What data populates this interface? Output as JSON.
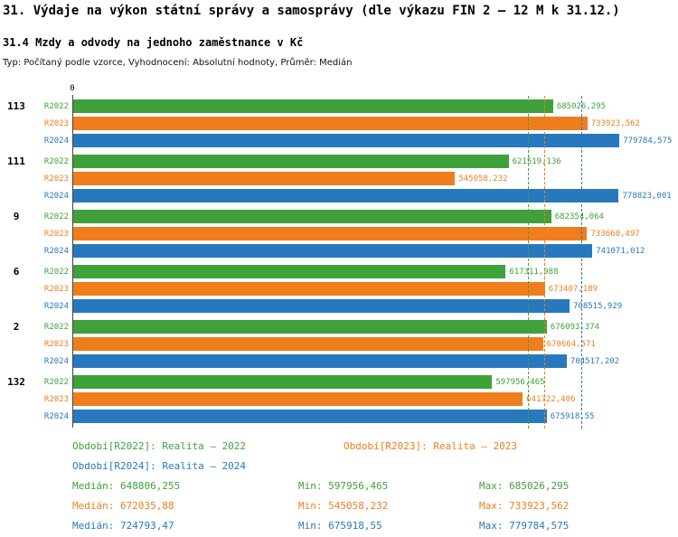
{
  "colors": {
    "R2022": "#3fa13a",
    "R2023": "#f07d1c",
    "R2024": "#2878be"
  },
  "chart_data": {
    "type": "bar",
    "orientation": "horizontal",
    "title": "31. Výdaje na výkon státní správy a samosprávy (dle výkazu FIN 2 – 12 M k 31.12.)",
    "subtitle": "31.4 Mzdy a odvody na jednoho zaměstnance v Kč",
    "meta": "Typ: Počítaný podle vzorce, Vyhodnocení: Absolutní hodnoty, Průměr: Medián",
    "axis_zero_label": "0",
    "value_axis_min": 0,
    "max_value": 779784.575,
    "max_bar_pct": 91,
    "categories": [
      "113",
      "111",
      "9",
      "6",
      "2",
      "132"
    ],
    "series_periods": [
      "R2022",
      "R2023",
      "R2024"
    ],
    "groups": [
      {
        "id": "113",
        "bars": [
          {
            "period": "R2022",
            "value": 685026.295,
            "label": "685026,295"
          },
          {
            "period": "R2023",
            "value": 733923.562,
            "label": "733923,562"
          },
          {
            "period": "R2024",
            "value": 779784.575,
            "label": "779784,575"
          }
        ]
      },
      {
        "id": "111",
        "bars": [
          {
            "period": "R2022",
            "value": 621519.136,
            "label": "621519,136"
          },
          {
            "period": "R2023",
            "value": 545058.232,
            "label": "545058,232"
          },
          {
            "period": "R2024",
            "value": 778823.001,
            "label": "778823,001"
          }
        ]
      },
      {
        "id": "9",
        "bars": [
          {
            "period": "R2022",
            "value": 682354.064,
            "label": "682354,064"
          },
          {
            "period": "R2023",
            "value": 733660.497,
            "label": "733660,497"
          },
          {
            "period": "R2024",
            "value": 741071.012,
            "label": "741071,012"
          }
        ]
      },
      {
        "id": "6",
        "bars": [
          {
            "period": "R2022",
            "value": 617311.988,
            "label": "617311,988"
          },
          {
            "period": "R2023",
            "value": 673407.189,
            "label": "673407,189"
          },
          {
            "period": "R2024",
            "value": 708515.929,
            "label": "708515,929"
          }
        ]
      },
      {
        "id": "2",
        "bars": [
          {
            "period": "R2022",
            "value": 676093.374,
            "label": "676093,374"
          },
          {
            "period": "R2023",
            "value": 670664.571,
            "label": "670664,571"
          },
          {
            "period": "R2024",
            "value": 704517.202,
            "label": "704517,202"
          }
        ]
      },
      {
        "id": "132",
        "bars": [
          {
            "period": "R2022",
            "value": 597956.465,
            "label": "597956,465"
          },
          {
            "period": "R2023",
            "value": 641722.406,
            "label": "641722,406"
          },
          {
            "period": "R2024",
            "value": 675918.55,
            "label": "675918,55"
          }
        ]
      }
    ],
    "medians": [
      {
        "period": "R2022",
        "value": 648806.255
      },
      {
        "period": "R2023",
        "value": 672035.88
      },
      {
        "period": "R2024",
        "value": 724793.47
      }
    ]
  },
  "legend": [
    {
      "period": "R2022",
      "label": "Období[R2022]: Realita – 2022"
    },
    {
      "period": "R2023",
      "label": "Období[R2023]: Realita – 2023"
    },
    {
      "period": "R2024",
      "label": "Období[R2024]: Realita – 2024"
    }
  ],
  "stats": [
    {
      "period": "R2022",
      "median": "Medián: 648806,255",
      "min": "Min: 597956,465",
      "max": "Max: 685026,295"
    },
    {
      "period": "R2023",
      "median": "Medián: 672035,88",
      "min": "Min: 545058,232",
      "max": "Max: 733923,562"
    },
    {
      "period": "R2024",
      "median": "Medián: 724793,47",
      "min": "Min: 675918,55",
      "max": "Max: 779784,575"
    }
  ]
}
